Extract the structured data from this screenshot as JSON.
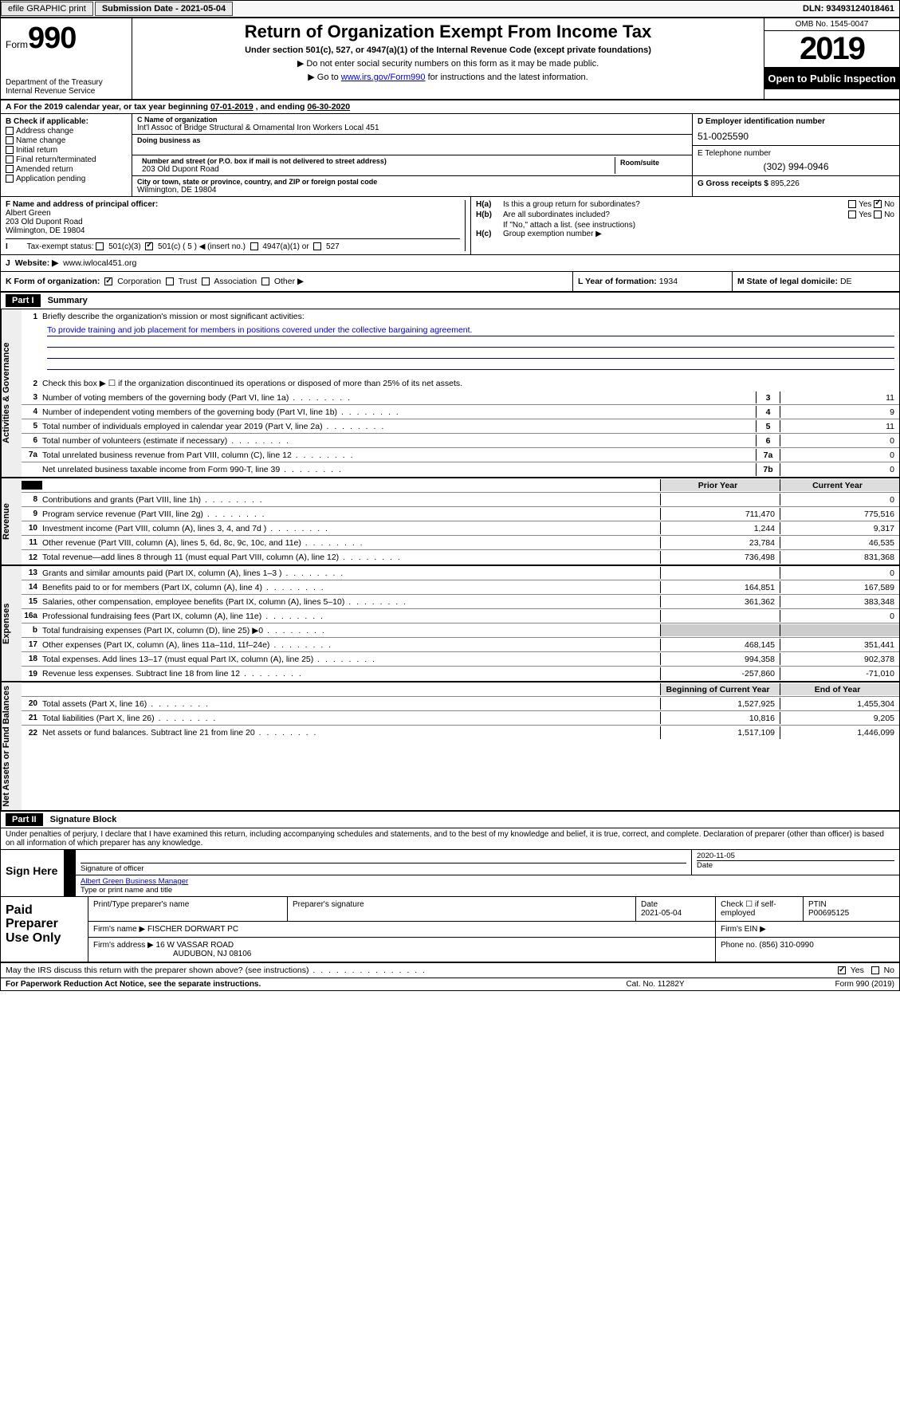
{
  "topbar": {
    "efile": "efile GRAPHIC print",
    "submission": "Submission Date - 2021-05-04",
    "dln": "DLN: 93493124018461"
  },
  "header": {
    "form_prefix": "Form",
    "form_number": "990",
    "dept1": "Department of the Treasury",
    "dept2": "Internal Revenue Service",
    "title": "Return of Organization Exempt From Income Tax",
    "subtitle": "Under section 501(c), 527, or 4947(a)(1) of the Internal Revenue Code (except private foundations)",
    "note1": "▶ Do not enter social security numbers on this form as it may be made public.",
    "note2_pre": "▶ Go to ",
    "note2_link": "www.irs.gov/Form990",
    "note2_post": " for instructions and the latest information.",
    "omb": "OMB No. 1545-0047",
    "year": "2019",
    "open": "Open to Public Inspection"
  },
  "rowA": {
    "text_pre": "A   For the 2019 calendar year, or tax year beginning ",
    "begin": "07-01-2019",
    "mid": "   , and ending ",
    "end": "06-30-2020"
  },
  "B": {
    "title": "B Check if applicable:",
    "opts": [
      "Address change",
      "Name change",
      "Initial return",
      "Final return/terminated",
      "Amended return",
      "Application pending"
    ]
  },
  "C": {
    "name_lbl": "C Name of organization",
    "name": "Int'l Assoc of Bridge Structural & Ornamental Iron Workers Local 451",
    "dba_lbl": "Doing business as",
    "dba": "",
    "addr_lbl": "Number and street (or P.O. box if mail is not delivered to street address)",
    "room_lbl": "Room/suite",
    "addr": "203 Old Dupont Road",
    "city_lbl": "City or town, state or province, country, and ZIP or foreign postal code",
    "city": "Wilmington, DE  19804"
  },
  "D": {
    "lbl": "D Employer identification number",
    "val": "51-0025590"
  },
  "E": {
    "lbl": "E Telephone number",
    "val": "(302) 994-0946"
  },
  "G": {
    "lbl": "G Gross receipts $ ",
    "val": "895,226"
  },
  "F": {
    "lbl": "F  Name and address of principal officer:",
    "name": "Albert Green",
    "addr1": "203 Old Dupont Road",
    "addr2": "Wilmington, DE  19804"
  },
  "H": {
    "a": "Is this a group return for subordinates?",
    "b": "Are all subordinates included?",
    "b_note": "If \"No,\" attach a list. (see instructions)",
    "c": "Group exemption number ▶",
    "yes": "Yes",
    "no": "No"
  },
  "I": {
    "lbl": "Tax-exempt status:",
    "c3": "501(c)(3)",
    "c": "501(c) ( 5 ) ◀ (insert no.)",
    "a1": "4947(a)(1) or",
    "s527": "527"
  },
  "J": {
    "lbl": "Website: ▶",
    "val": "www.iwlocal451.org"
  },
  "K": {
    "lbl": "K Form of organization:",
    "opts": [
      "Corporation",
      "Trust",
      "Association",
      "Other ▶"
    ]
  },
  "L": {
    "lbl": "L Year of formation: ",
    "val": "1934"
  },
  "M": {
    "lbl": "M State of legal domicile: ",
    "val": "DE"
  },
  "part1": {
    "hdr": "Part I",
    "title": "Summary"
  },
  "summary": {
    "gov_label": "Activities & Governance",
    "rev_label": "Revenue",
    "exp_label": "Expenses",
    "net_label": "Net Assets or Fund Balances",
    "line1_lbl": "Briefly describe the organization's mission or most significant activities:",
    "line1_txt": "To provide training and job placement for members in positions covered under the collective bargaining agreement.",
    "line2": "Check this box ▶ ☐  if the organization discontinued its operations or disposed of more than 25% of its net assets.",
    "lines_gov": [
      {
        "n": "3",
        "t": "Number of voting members of the governing body (Part VI, line 1a)",
        "b": "3",
        "v": "11"
      },
      {
        "n": "4",
        "t": "Number of independent voting members of the governing body (Part VI, line 1b)",
        "b": "4",
        "v": "9"
      },
      {
        "n": "5",
        "t": "Total number of individuals employed in calendar year 2019 (Part V, line 2a)",
        "b": "5",
        "v": "11"
      },
      {
        "n": "6",
        "t": "Total number of volunteers (estimate if necessary)",
        "b": "6",
        "v": "0"
      },
      {
        "n": "7a",
        "t": "Total unrelated business revenue from Part VIII, column (C), line 12",
        "b": "7a",
        "v": "0"
      },
      {
        "n": "",
        "t": "Net unrelated business taxable income from Form 990-T, line 39",
        "b": "7b",
        "v": "0"
      }
    ],
    "col_prior": "Prior Year",
    "col_current": "Current Year",
    "col_begin": "Beginning of Current Year",
    "col_end": "End of Year",
    "lines_rev": [
      {
        "n": "8",
        "t": "Contributions and grants (Part VIII, line 1h)",
        "p": "",
        "c": "0"
      },
      {
        "n": "9",
        "t": "Program service revenue (Part VIII, line 2g)",
        "p": "711,470",
        "c": "775,516"
      },
      {
        "n": "10",
        "t": "Investment income (Part VIII, column (A), lines 3, 4, and 7d )",
        "p": "1,244",
        "c": "9,317"
      },
      {
        "n": "11",
        "t": "Other revenue (Part VIII, column (A), lines 5, 6d, 8c, 9c, 10c, and 11e)",
        "p": "23,784",
        "c": "46,535"
      },
      {
        "n": "12",
        "t": "Total revenue—add lines 8 through 11 (must equal Part VIII, column (A), line 12)",
        "p": "736,498",
        "c": "831,368"
      }
    ],
    "lines_exp": [
      {
        "n": "13",
        "t": "Grants and similar amounts paid (Part IX, column (A), lines 1–3 )",
        "p": "",
        "c": "0"
      },
      {
        "n": "14",
        "t": "Benefits paid to or for members (Part IX, column (A), line 4)",
        "p": "164,851",
        "c": "167,589"
      },
      {
        "n": "15",
        "t": "Salaries, other compensation, employee benefits (Part IX, column (A), lines 5–10)",
        "p": "361,362",
        "c": "383,348"
      },
      {
        "n": "16a",
        "t": "Professional fundraising fees (Part IX, column (A), line 11e)",
        "p": "",
        "c": "0"
      },
      {
        "n": "b",
        "t": "Total fundraising expenses (Part IX, column (D), line 25) ▶0",
        "p": "—g",
        "c": "—g"
      },
      {
        "n": "17",
        "t": "Other expenses (Part IX, column (A), lines 11a–11d, 11f–24e)",
        "p": "468,145",
        "c": "351,441"
      },
      {
        "n": "18",
        "t": "Total expenses. Add lines 13–17 (must equal Part IX, column (A), line 25)",
        "p": "994,358",
        "c": "902,378"
      },
      {
        "n": "19",
        "t": "Revenue less expenses. Subtract line 18 from line 12",
        "p": "-257,860",
        "c": "-71,010"
      }
    ],
    "lines_net": [
      {
        "n": "20",
        "t": "Total assets (Part X, line 16)",
        "p": "1,527,925",
        "c": "1,455,304"
      },
      {
        "n": "21",
        "t": "Total liabilities (Part X, line 26)",
        "p": "10,816",
        "c": "9,205"
      },
      {
        "n": "22",
        "t": "Net assets or fund balances. Subtract line 21 from line 20",
        "p": "1,517,109",
        "c": "1,446,099"
      }
    ]
  },
  "part2": {
    "hdr": "Part II",
    "title": "Signature Block"
  },
  "perjury": "Under penalties of perjury, I declare that I have examined this return, including accompanying schedules and statements, and to the best of my knowledge and belief, it is true, correct, and complete. Declaration of preparer (other than officer) is based on all information of which preparer has any knowledge.",
  "sign": {
    "here": "Sign Here",
    "sig_lbl": "Signature of officer",
    "date_lbl": "Date",
    "date": "2020-11-05",
    "name": "Albert Green  Business Manager",
    "name_lbl": "Type or print name and title"
  },
  "prep": {
    "lbl": "Paid Preparer Use Only",
    "c1": "Print/Type preparer's name",
    "c2": "Preparer's signature",
    "c3_lbl": "Date",
    "c3": "2021-05-04",
    "c4": "Check ☐ if self-employed",
    "c5_lbl": "PTIN",
    "c5": "P00695125",
    "firm_lbl": "Firm's name    ▶",
    "firm": "FISCHER DORWART PC",
    "ein_lbl": "Firm's EIN ▶",
    "addr_lbl": "Firm's address ▶",
    "addr1": "16 W VASSAR ROAD",
    "addr2": "AUDUBON, NJ  08106",
    "phone_lbl": "Phone no. ",
    "phone": "(856) 310-0990"
  },
  "discuss": {
    "q": "May the IRS discuss this return with the preparer shown above? (see instructions)",
    "yes": "Yes",
    "no": "No"
  },
  "footer": {
    "l": "For Paperwork Reduction Act Notice, see the separate instructions.",
    "c": "Cat. No. 11282Y",
    "r": "Form 990 (2019)"
  }
}
